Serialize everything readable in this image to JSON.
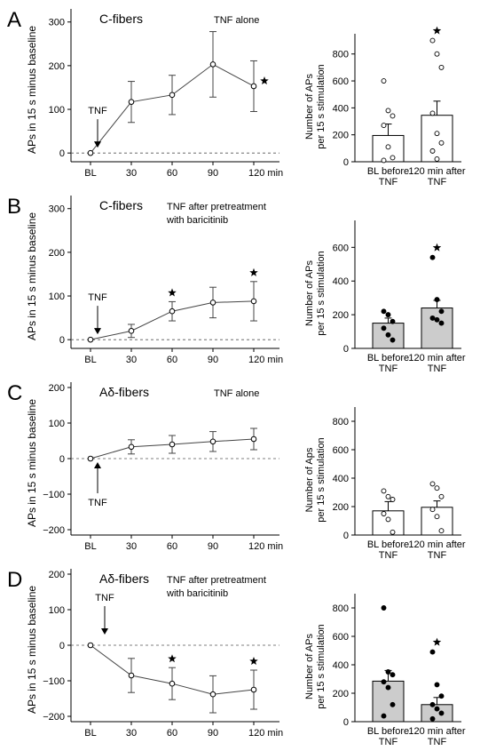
{
  "figure": {
    "panels": [
      {
        "letter": "A",
        "line": {
          "fiber": "C-fibers",
          "condition": [
            "TNF alone"
          ],
          "ylabel": "APs in 15 s minus baseline",
          "yticks": [
            "0",
            "100",
            "200",
            "300"
          ],
          "xticks": [
            "BL",
            "30",
            "60",
            "90",
            "120 min"
          ],
          "arrow_label": "TNF",
          "arrow_dir": "down",
          "stars": [
            false,
            false,
            false,
            false,
            true
          ],
          "star_side": "right"
        },
        "bar": {
          "ylabel": [
            "Number of APs",
            "per 15 s stimulation"
          ],
          "yticks": [
            "0",
            "200",
            "400",
            "600",
            "800"
          ],
          "categories": [
            [
              "BL before",
              "TNF"
            ],
            [
              "120 min after",
              "TNF"
            ]
          ],
          "fill": "#ffffff",
          "dots": "open",
          "stars": [
            false,
            true
          ]
        }
      },
      {
        "letter": "B",
        "line": {
          "fiber": "C-fibers",
          "condition": [
            "TNF after pretreatment",
            "with baricitinib"
          ],
          "ylabel": "APs in 15 s minus baseline",
          "yticks": [
            "0",
            "100",
            "200",
            "300"
          ],
          "xticks": [
            "BL",
            "30",
            "60",
            "90",
            "120 min"
          ],
          "arrow_label": "TNF",
          "arrow_dir": "down",
          "stars": [
            false,
            false,
            true,
            false,
            true
          ],
          "star_side": "above"
        },
        "bar": {
          "ylabel": [
            "Number of APs",
            "per 15 s stimulation"
          ],
          "yticks": [
            "0",
            "200",
            "400",
            "600"
          ],
          "categories": [
            [
              "BL before",
              "TNF"
            ],
            [
              "120 min after",
              "TNF"
            ]
          ],
          "fill": "#cccccc",
          "dots": "filled",
          "stars": [
            false,
            true
          ]
        }
      },
      {
        "letter": "C",
        "line": {
          "fiber": "Aδ-fibers",
          "condition": [
            "TNF alone"
          ],
          "ylabel": "APs in 15 s minus baseline",
          "yticks": [
            "−200",
            "−100",
            "0",
            "100",
            "200"
          ],
          "xticks": [
            "BL",
            "30",
            "60",
            "90",
            "120 min"
          ],
          "arrow_label": "TNF",
          "arrow_dir": "up",
          "stars": [
            false,
            false,
            false,
            false,
            false
          ],
          "star_side": "above"
        },
        "bar": {
          "ylabel": [
            "Number of Aps",
            "per 15 s stimulation"
          ],
          "yticks": [
            "0",
            "200",
            "400",
            "600",
            "800"
          ],
          "categories": [
            [
              "BL before",
              "TNF"
            ],
            [
              "120 min after",
              "TNF"
            ]
          ],
          "fill": "#ffffff",
          "dots": "open",
          "stars": [
            false,
            false
          ]
        }
      },
      {
        "letter": "D",
        "line": {
          "fiber": "Aδ-fibers",
          "condition": [
            "TNF after pretreatment",
            "with baricitinib"
          ],
          "ylabel": "APs in 15 s minus baseline",
          "yticks": [
            "−200",
            "−100",
            "0",
            "100",
            "200"
          ],
          "xticks": [
            "BL",
            "30",
            "60",
            "90",
            "120 min"
          ],
          "arrow_label": "TNF",
          "arrow_dir": "down",
          "stars": [
            false,
            false,
            true,
            false,
            true
          ],
          "star_side": "above"
        },
        "bar": {
          "ylabel": [
            "Number of APs",
            "per 15 s stimulation"
          ],
          "yticks": [
            "0",
            "200",
            "400",
            "600",
            "800"
          ],
          "categories": [
            [
              "BL before",
              "TNF"
            ],
            [
              "120 min after",
              "TNF"
            ]
          ],
          "fill": "#cccccc",
          "dots": "filled",
          "stars": [
            false,
            true
          ]
        }
      }
    ]
  },
  "chart_data": [
    {
      "panel": "A",
      "type": "line",
      "title": "C-fibers",
      "subtitle": "TNF alone",
      "ylabel": "APs in 15 s minus baseline",
      "x": [
        "BL",
        "30",
        "60",
        "90",
        "120 min"
      ],
      "series": [
        {
          "values": [
            0,
            117,
            133,
            203,
            153
          ],
          "error": [
            0,
            47,
            45,
            75,
            58
          ]
        }
      ],
      "ylim": [
        -20,
        330
      ],
      "reference_line": 0,
      "annotations": [
        "TNF",
        "*"
      ]
    },
    {
      "panel": "A",
      "type": "bar",
      "ylabel": "Number of APs per 15 s stimulation",
      "categories": [
        "BL before TNF",
        "120 min after TNF"
      ],
      "values": [
        195,
        345
      ],
      "error": [
        85,
        105
      ],
      "points": [
        [
          600,
          380,
          340,
          270,
          110,
          30,
          10
        ],
        [
          900,
          800,
          700,
          360,
          210,
          140,
          80,
          20
        ]
      ],
      "ylim": [
        0,
        950
      ],
      "annotations": [
        "*"
      ]
    },
    {
      "panel": "B",
      "type": "line",
      "title": "C-fibers",
      "subtitle": "TNF after pretreatment with baricitinib",
      "ylabel": "APs in 15 s minus baseline",
      "x": [
        "BL",
        "30",
        "60",
        "90",
        "120 min"
      ],
      "series": [
        {
          "values": [
            0,
            20,
            65,
            85,
            88
          ],
          "error": [
            0,
            15,
            22,
            35,
            45
          ]
        }
      ],
      "ylim": [
        -20,
        330
      ],
      "reference_line": 0,
      "annotations": [
        "TNF",
        "*",
        "*"
      ]
    },
    {
      "panel": "B",
      "type": "bar",
      "ylabel": "Number of APs per 15 s stimulation",
      "categories": [
        "BL before TNF",
        "120 min after TNF"
      ],
      "values": [
        150,
        240
      ],
      "error": [
        30,
        45
      ],
      "points": [
        [
          220,
          200,
          160,
          120,
          80,
          50
        ],
        [
          540,
          290,
          220,
          180,
          170,
          150
        ]
      ],
      "ylim": [
        0,
        760
      ],
      "annotations": [
        "*"
      ]
    },
    {
      "panel": "C",
      "type": "line",
      "title": "Aδ-fibers",
      "subtitle": "TNF alone",
      "ylabel": "APs in 15 s minus baseline",
      "x": [
        "BL",
        "30",
        "60",
        "90",
        "120 min"
      ],
      "series": [
        {
          "values": [
            0,
            33,
            40,
            48,
            55
          ],
          "error": [
            0,
            20,
            25,
            28,
            30
          ]
        }
      ],
      "ylim": [
        -215,
        215
      ],
      "reference_line": 0,
      "annotations": [
        "TNF"
      ]
    },
    {
      "panel": "C",
      "type": "bar",
      "ylabel": "Number of Aps per 15 s stimulation",
      "categories": [
        "BL before TNF",
        "120 min after TNF"
      ],
      "values": [
        170,
        195
      ],
      "error": [
        65,
        45
      ],
      "points": [
        [
          310,
          270,
          250,
          150,
          110,
          20
        ],
        [
          360,
          330,
          270,
          180,
          130,
          30
        ]
      ],
      "ylim": [
        0,
        900
      ],
      "annotations": []
    },
    {
      "panel": "D",
      "type": "line",
      "title": "Aδ-fibers",
      "subtitle": "TNF after pretreatment with baricitinib",
      "ylabel": "APs in 15 s minus baseline",
      "x": [
        "BL",
        "30",
        "60",
        "90",
        "120 min"
      ],
      "series": [
        {
          "values": [
            0,
            -85,
            -108,
            -138,
            -125
          ],
          "error": [
            0,
            48,
            45,
            52,
            55
          ]
        }
      ],
      "ylim": [
        -215,
        215
      ],
      "reference_line": 0,
      "annotations": [
        "TNF",
        "*",
        "*"
      ]
    },
    {
      "panel": "D",
      "type": "bar",
      "ylabel": "Number of APs per 15 s stimulation",
      "categories": [
        "BL before TNF",
        "120 min after TNF"
      ],
      "values": [
        285,
        120
      ],
      "error": [
        75,
        50
      ],
      "points": [
        [
          800,
          350,
          330,
          280,
          240,
          120,
          40
        ],
        [
          490,
          260,
          180,
          120,
          90,
          60,
          20
        ]
      ],
      "ylim": [
        0,
        900
      ],
      "annotations": [
        "*"
      ]
    }
  ]
}
